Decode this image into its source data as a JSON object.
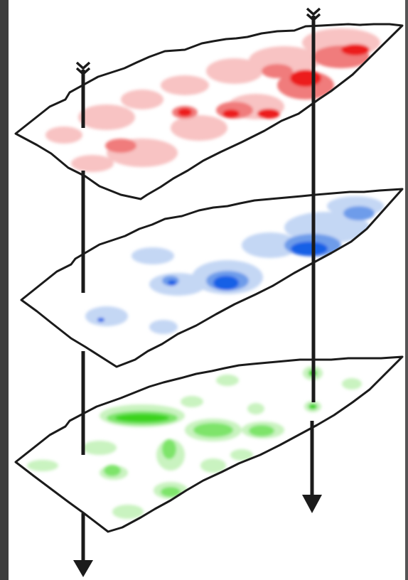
{
  "figure": {
    "description_free": true,
    "layers": [
      {
        "name": "red-layer",
        "color_light": "#f8c3c3",
        "color_mid": "#f07c7c",
        "color_dark": "#ec1c1c"
      },
      {
        "name": "blue-layer",
        "color_light": "#c4d7f4",
        "color_mid": "#6e9cea",
        "color_dark": "#1460e6"
      },
      {
        "name": "green-layer",
        "color_light": "#c9f3c0",
        "color_mid": "#7ee46a",
        "color_dark": "#3bd31b"
      }
    ],
    "arrows": [
      {
        "name": "left-arrow",
        "layers_crossed": 3
      },
      {
        "name": "right-arrow",
        "layers_crossed": 3
      }
    ],
    "frame": {
      "left_bar_color": "#3d3d3d",
      "right_bar_color": "#555555",
      "stroke_color": "#1b1b1b"
    }
  }
}
